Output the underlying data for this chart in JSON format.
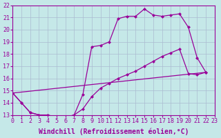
{
  "bg_color": "#c5e8e8",
  "grid_color": "#aabbd0",
  "line_color": "#990099",
  "xlabel": "Windchill (Refroidissement éolien,°C)",
  "xlim": [
    0,
    23
  ],
  "ylim": [
    13,
    22
  ],
  "xticks": [
    0,
    1,
    2,
    3,
    4,
    5,
    6,
    7,
    8,
    9,
    10,
    11,
    12,
    13,
    14,
    15,
    16,
    17,
    18,
    19,
    20,
    21,
    22,
    23
  ],
  "yticks": [
    13,
    14,
    15,
    16,
    17,
    18,
    19,
    20,
    21,
    22
  ],
  "line1_x": [
    0,
    1,
    2,
    3,
    4,
    5,
    6,
    7,
    8,
    9,
    10,
    11,
    12,
    13,
    14,
    15,
    16,
    17,
    18,
    19,
    20,
    21,
    22
  ],
  "line1_y": [
    14.8,
    14.0,
    13.2,
    13.0,
    13.0,
    12.8,
    12.8,
    13.0,
    14.7,
    18.6,
    18.7,
    19.0,
    20.9,
    21.1,
    21.1,
    21.7,
    21.2,
    21.1,
    21.2,
    21.3,
    20.2,
    17.7,
    16.5
  ],
  "line2_x": [
    0,
    1,
    2,
    3,
    4,
    5,
    6,
    7,
    8,
    9,
    10,
    11,
    12,
    13,
    14,
    15,
    16,
    17,
    18,
    19,
    20,
    21,
    22
  ],
  "line2_y": [
    14.8,
    14.0,
    13.2,
    13.0,
    13.0,
    12.8,
    12.8,
    13.0,
    13.5,
    14.5,
    15.2,
    15.6,
    16.0,
    16.3,
    16.6,
    17.0,
    17.4,
    17.8,
    18.1,
    18.4,
    16.4,
    16.3,
    16.5
  ],
  "line3_x": [
    0,
    22
  ],
  "line3_y": [
    14.8,
    16.5
  ],
  "lw": 0.9,
  "ms": 2.5,
  "font_size_label": 7,
  "font_size_tick": 6
}
